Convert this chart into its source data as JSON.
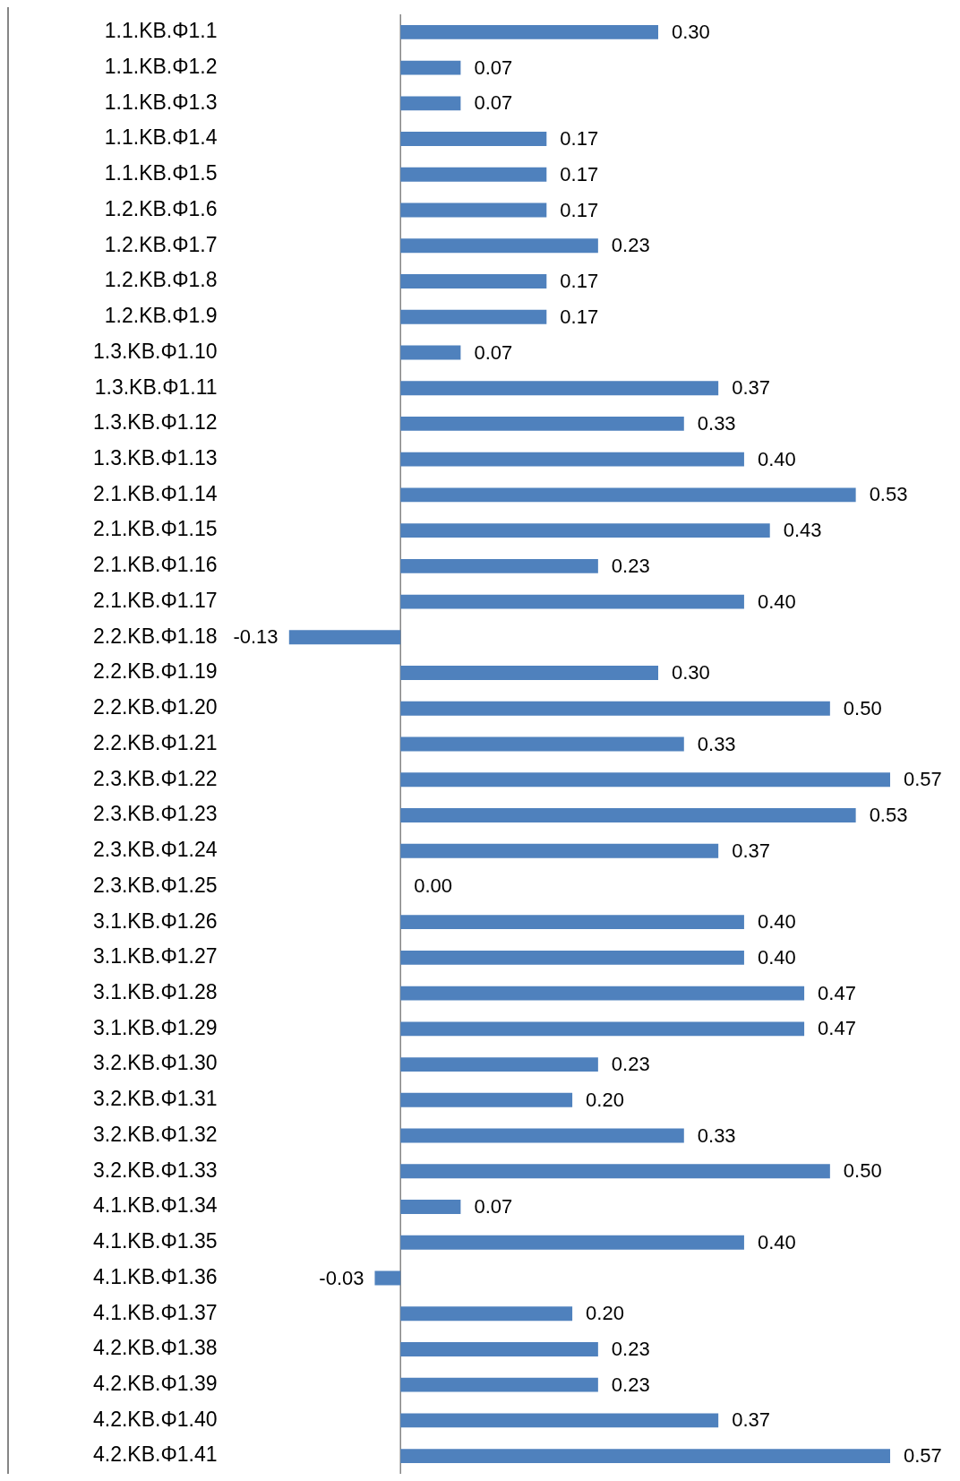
{
  "chart_data": {
    "type": "bar",
    "orientation": "horizontal",
    "tick_labels": "y",
    "color": "#4f81bd",
    "categories": [
      "1.1.ΚΒ.Φ1.1",
      "1.1.ΚΒ.Φ1.2",
      "1.1.ΚΒ.Φ1.3",
      "1.1.ΚΒ.Φ1.4",
      "1.1.ΚΒ.Φ1.5",
      "1.2.ΚΒ.Φ1.6",
      "1.2.ΚΒ.Φ1.7",
      "1.2.ΚΒ.Φ1.8",
      "1.2.ΚΒ.Φ1.9",
      "1.3.ΚΒ.Φ1.10",
      "1.3.ΚΒ.Φ1.11",
      "1.3.ΚΒ.Φ1.12",
      "1.3.ΚΒ.Φ1.13",
      "2.1.ΚΒ.Φ1.14",
      "2.1.ΚΒ.Φ1.15",
      "2.1.ΚΒ.Φ1.16",
      "2.1.ΚΒ.Φ1.17",
      "2.2.ΚΒ.Φ1.18",
      "2.2.ΚΒ.Φ1.19",
      "2.2.ΚΒ.Φ1.20",
      "2.2.ΚΒ.Φ1.21",
      "2.3.ΚΒ.Φ1.22",
      "2.3.ΚΒ.Φ1.23",
      "2.3.ΚΒ.Φ1.24",
      "2.3.ΚΒ.Φ1.25",
      "3.1.ΚΒ.Φ1.26",
      "3.1.ΚΒ.Φ1.27",
      "3.1.ΚΒ.Φ1.28",
      "3.1.ΚΒ.Φ1.29",
      "3.2.ΚΒ.Φ1.30",
      "3.2.ΚΒ.Φ1.31",
      "3.2.ΚΒ.Φ1.32",
      "3.2.ΚΒ.Φ1.33",
      "4.1.ΚΒ.Φ1.34",
      "4.1.ΚΒ.Φ1.35",
      "4.1.ΚΒ.Φ1.36",
      "4.1.ΚΒ.Φ1.37",
      "4.2.ΚΒ.Φ1.38",
      "4.2.ΚΒ.Φ1.39",
      "4.2.ΚΒ.Φ1.40",
      "4.2.ΚΒ.Φ1.41"
    ],
    "values": [
      0.3,
      0.07,
      0.07,
      0.17,
      0.17,
      0.17,
      0.23,
      0.17,
      0.17,
      0.07,
      0.37,
      0.33,
      0.4,
      0.53,
      0.43,
      0.23,
      0.4,
      -0.13,
      0.3,
      0.5,
      0.33,
      0.57,
      0.53,
      0.37,
      0.0,
      0.4,
      0.4,
      0.47,
      0.47,
      0.23,
      0.2,
      0.33,
      0.5,
      0.07,
      0.4,
      -0.03,
      0.2,
      0.23,
      0.23,
      0.37,
      0.57
    ],
    "value_labels": [
      "0.30",
      "0.07",
      "0.07",
      "0.17",
      "0.17",
      "0.17",
      "0.23",
      "0.17",
      "0.17",
      "0.07",
      "0.37",
      "0.33",
      "0.40",
      "0.53",
      "0.43",
      "0.23",
      "0.40",
      "-0.13",
      "0.30",
      "0.50",
      "0.33",
      "0.57",
      "0.53",
      "0.37",
      "0.00",
      "0.40",
      "0.40",
      "0.47",
      "0.47",
      "0.23",
      "0.20",
      "0.33",
      "0.50",
      "0.07",
      "0.40",
      "-0.03",
      "0.20",
      "0.23",
      "0.23",
      "0.37",
      "0.57"
    ]
  }
}
